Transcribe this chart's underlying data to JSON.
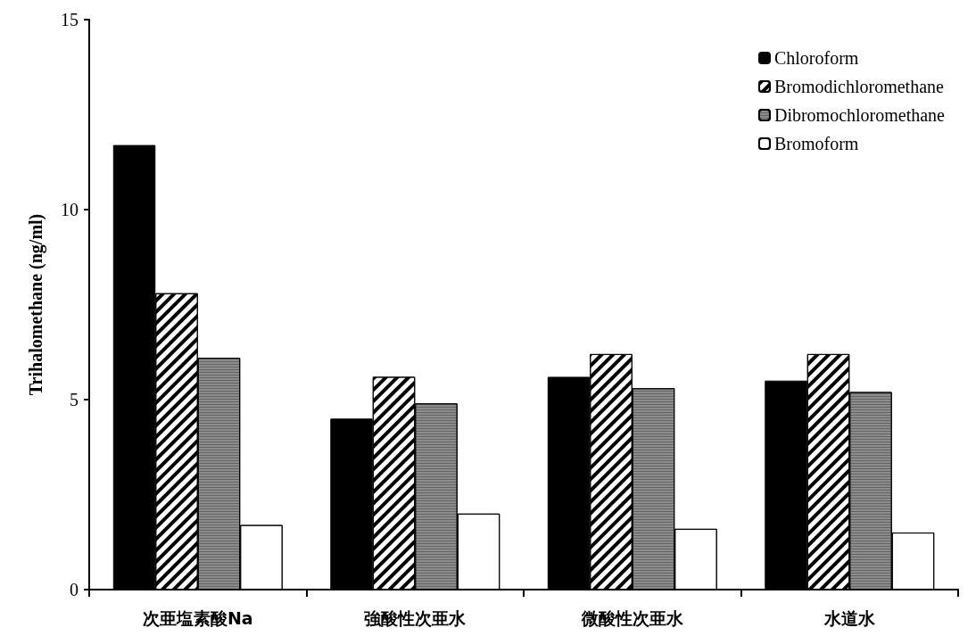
{
  "chart_data": {
    "type": "bar",
    "ylabel": "Trihalomethane (ng/ml)",
    "categories": [
      "次亜塩素酸Na",
      "強酸性次亜水",
      "微酸性次亜水",
      "水道水"
    ],
    "series": [
      {
        "name": "Chloroform",
        "color": "#000000",
        "values": [
          11.7,
          4.5,
          5.6,
          5.5
        ]
      },
      {
        "name": "Bromodichloromethane",
        "color": "#ffffff",
        "values": [
          7.8,
          5.6,
          6.2,
          6.2
        ]
      },
      {
        "name": "Dibromochloromethane",
        "color": "#8c8c8c",
        "values": [
          6.1,
          4.9,
          5.3,
          5.2
        ]
      },
      {
        "name": "Bromoform",
        "color": "#ffffff",
        "values": [
          1.7,
          2.0,
          1.6,
          1.5
        ]
      }
    ],
    "ylim": [
      0,
      15
    ],
    "yticks": [
      0,
      5,
      10,
      15
    ],
    "grid": false,
    "legend": "top right"
  }
}
